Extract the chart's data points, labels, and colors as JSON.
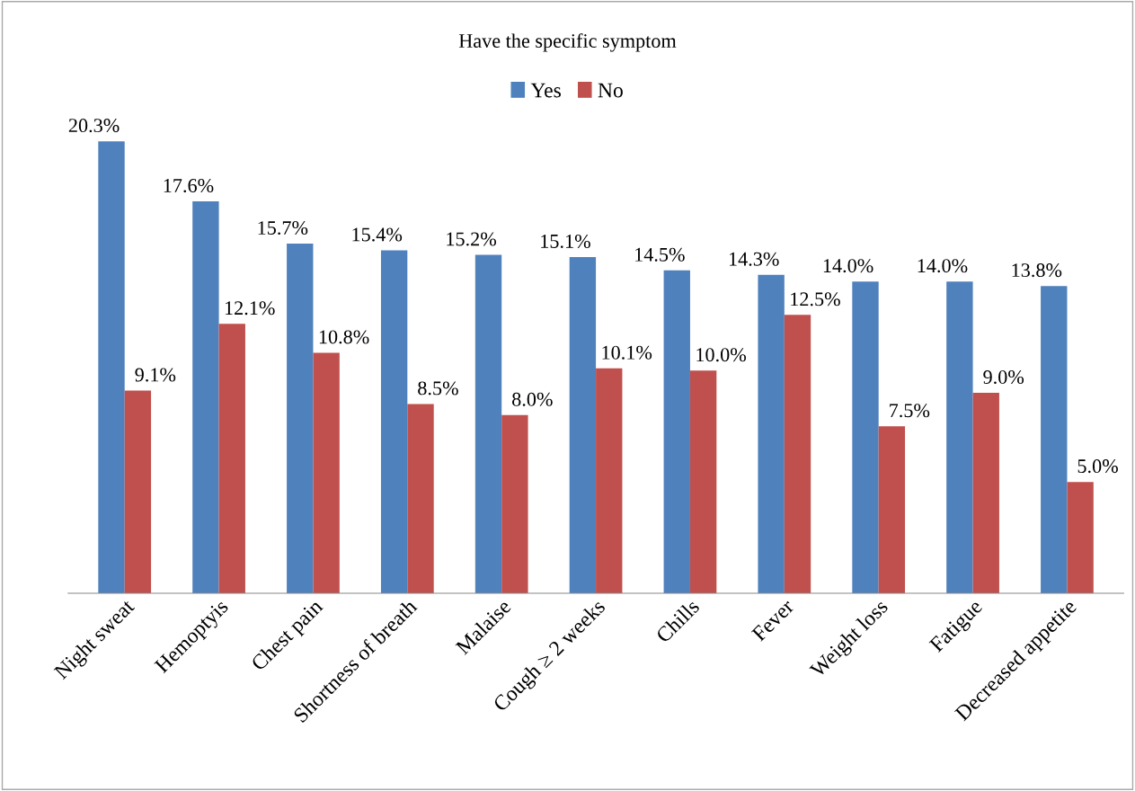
{
  "chart_data": {
    "type": "bar",
    "title": "Have the specific symptom",
    "legend": "top",
    "categories": [
      "Night sweat",
      "Hemoptyis",
      "Chest pain",
      "Shortness of breath",
      "Malaise",
      "Cough ≥ 2 weeks",
      "Chills",
      "Fever",
      "Weight loss",
      "Fatigue",
      "Decreased appetite"
    ],
    "series": [
      {
        "name": "Yes",
        "color": "#4f81bd",
        "values": [
          20.3,
          17.6,
          15.7,
          15.4,
          15.2,
          15.1,
          14.5,
          14.3,
          14.0,
          14.0,
          13.8
        ],
        "value_labels": [
          "20.3%",
          "17.6%",
          "15.7%",
          "15.4%",
          "15.2%",
          "15.1%",
          "14.5%",
          "14.3%",
          "14.0%",
          "14.0%",
          "13.8%"
        ]
      },
      {
        "name": "No",
        "color": "#c0504d",
        "values": [
          9.1,
          12.1,
          10.8,
          8.5,
          8.0,
          10.1,
          10.0,
          12.5,
          7.5,
          9.0,
          5.0
        ],
        "value_labels": [
          "9.1%",
          "12.1%",
          "10.8%",
          "8.5%",
          "8.0%",
          "10.1%",
          "10.0%",
          "12.5%",
          "7.5%",
          "9.0%",
          "5.0%"
        ]
      }
    ]
  }
}
